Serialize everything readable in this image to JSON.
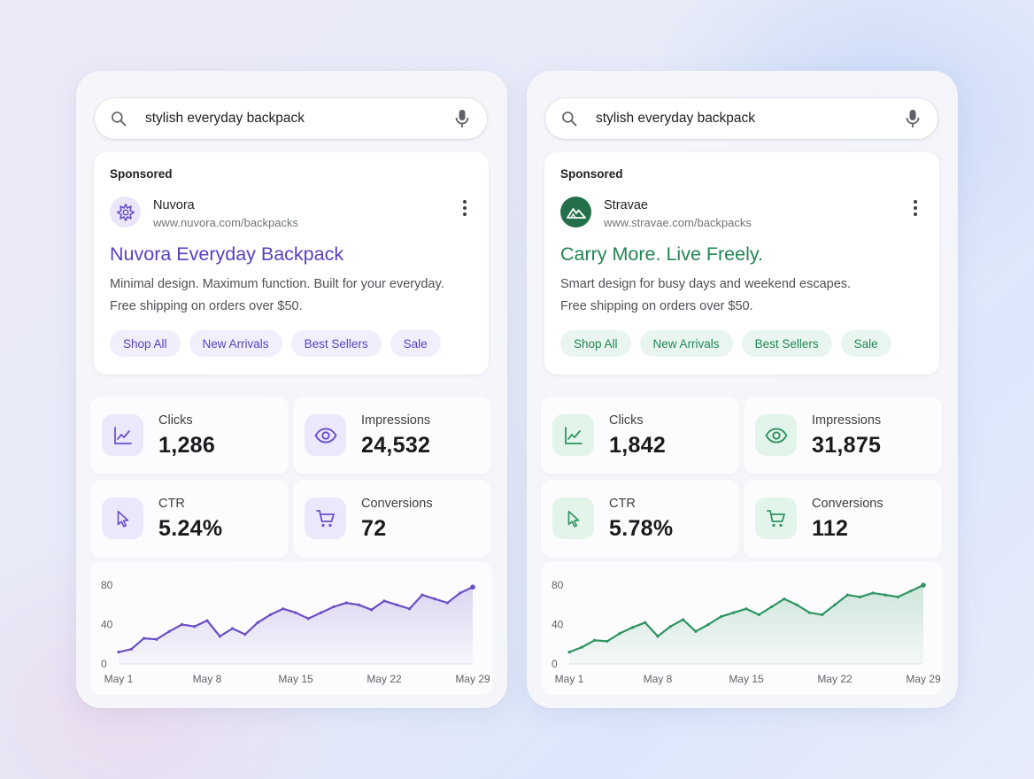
{
  "panels": [
    {
      "search": {
        "query": "stylish everyday backpack"
      },
      "ad": {
        "sponsored_label": "Sponsored",
        "brand": "Nuvora",
        "url": "www.nuvora.com/backpacks",
        "headline": "Nuvora Everyday Backpack",
        "description_line1": "Minimal design. Maximum function. Built for your everyday.",
        "description_line2": "Free shipping on orders over $50.",
        "sitelinks": [
          "Shop All",
          "New Arrivals",
          "Best Sellers",
          "Sale"
        ]
      },
      "stats": {
        "clicks": {
          "label": "Clicks",
          "value": "1,286",
          "icon": "trend-chart-icon"
        },
        "impressions": {
          "label": "Impressions",
          "value": "24,532",
          "icon": "eye-icon"
        },
        "ctr": {
          "label": "CTR",
          "value": "5.24%",
          "icon": "cursor-icon"
        },
        "conversions": {
          "label": "Conversions",
          "value": "72",
          "icon": "cart-icon"
        }
      },
      "accent_color": "#6a4fc4",
      "chart_data": {
        "type": "area",
        "x": [
          "May 1",
          "May 2",
          "May 3",
          "May 4",
          "May 5",
          "May 6",
          "May 7",
          "May 8",
          "May 9",
          "May 10",
          "May 11",
          "May 12",
          "May 13",
          "May 14",
          "May 15",
          "May 16",
          "May 17",
          "May 18",
          "May 19",
          "May 20",
          "May 21",
          "May 22",
          "May 23",
          "May 24",
          "May 25",
          "May 26",
          "May 27",
          "May 28",
          "May 29"
        ],
        "values": [
          12,
          15,
          26,
          25,
          33,
          40,
          38,
          44,
          28,
          36,
          30,
          42,
          50,
          56,
          52,
          46,
          52,
          58,
          62,
          60,
          55,
          64,
          60,
          56,
          70,
          66,
          62,
          72,
          78
        ],
        "xticks": [
          "May 1",
          "May 8",
          "May 15",
          "May 22",
          "May 29"
        ],
        "yticks": [
          "0",
          "40",
          "80"
        ],
        "ylim": [
          0,
          80
        ]
      }
    },
    {
      "search": {
        "query": "stylish everyday backpack"
      },
      "ad": {
        "sponsored_label": "Sponsored",
        "brand": "Stravae",
        "url": "www.stravae.com/backpacks",
        "headline": "Carry More. Live Freely.",
        "description_line1": "Smart design for busy days and weekend escapes.",
        "description_line2": "Free shipping on orders over $50.",
        "sitelinks": [
          "Shop All",
          "New Arrivals",
          "Best Sellers",
          "Sale"
        ]
      },
      "stats": {
        "clicks": {
          "label": "Clicks",
          "value": "1,842",
          "icon": "trend-chart-icon"
        },
        "impressions": {
          "label": "Impressions",
          "value": "31,875",
          "icon": "eye-icon"
        },
        "ctr": {
          "label": "CTR",
          "value": "5.78%",
          "icon": "cursor-icon"
        },
        "conversions": {
          "label": "Conversions",
          "value": "112",
          "icon": "cart-icon"
        }
      },
      "accent_color": "#2e9462",
      "chart_data": {
        "type": "area",
        "x": [
          "May 1",
          "May 2",
          "May 3",
          "May 4",
          "May 5",
          "May 6",
          "May 7",
          "May 8",
          "May 9",
          "May 10",
          "May 11",
          "May 12",
          "May 13",
          "May 14",
          "May 15",
          "May 16",
          "May 17",
          "May 18",
          "May 19",
          "May 20",
          "May 21",
          "May 22",
          "May 23",
          "May 24",
          "May 25",
          "May 26",
          "May 27",
          "May 28",
          "May 29"
        ],
        "values": [
          12,
          17,
          24,
          23,
          31,
          37,
          42,
          28,
          38,
          45,
          33,
          40,
          48,
          52,
          56,
          50,
          58,
          66,
          60,
          52,
          50,
          60,
          70,
          68,
          72,
          70,
          68,
          74,
          80
        ],
        "xticks": [
          "May 1",
          "May 8",
          "May 15",
          "May 22",
          "May 29"
        ],
        "yticks": [
          "0",
          "40",
          "80"
        ],
        "ylim": [
          0,
          80
        ]
      }
    }
  ]
}
